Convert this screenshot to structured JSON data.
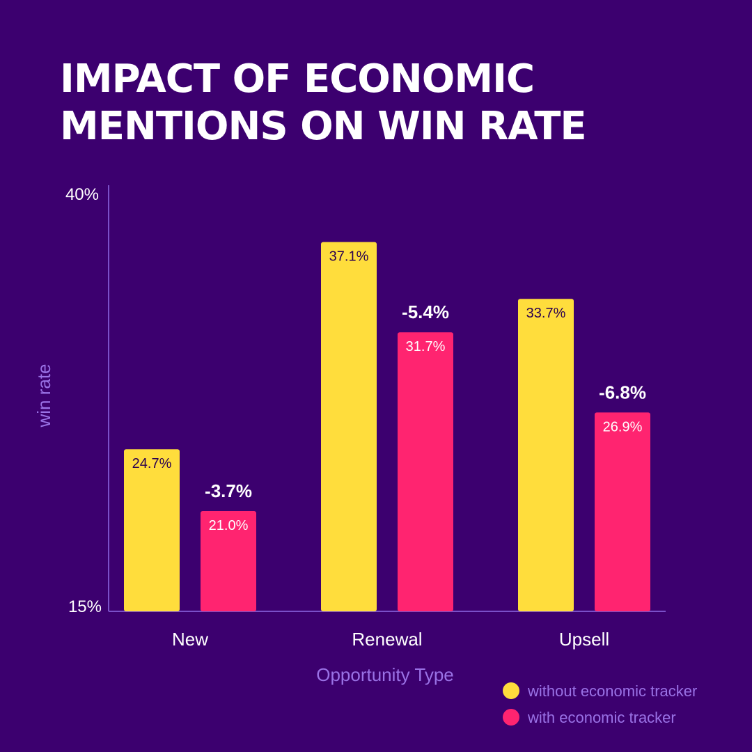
{
  "title_lines": [
    "IMPACT OF ECONOMIC",
    "MENTIONS ON WIN RATE"
  ],
  "chart_data": {
    "type": "bar",
    "categories": [
      "New",
      "Renewal",
      "Upsell"
    ],
    "series": [
      {
        "name": "without economic tracker",
        "values": [
          24.7,
          37.1,
          33.7
        ],
        "labels": [
          "24.7%",
          "37.1%",
          "33.7%"
        ],
        "color": "#ffdd3c"
      },
      {
        "name": "with economic tracker",
        "values": [
          21.0,
          31.7,
          26.9
        ],
        "labels": [
          "21.0%",
          "31.7%",
          "26.9%"
        ],
        "color": "#ff2470"
      }
    ],
    "deltas": [
      "-3.7%",
      "-5.4%",
      "-6.8%"
    ],
    "ylim": [
      15,
      40
    ],
    "yticks": [
      "15%",
      "40%"
    ],
    "xlabel": "Opportunity Type",
    "ylabel": "win rate",
    "legend_placement": "bottom-right",
    "colors": {
      "background": "#3c006f",
      "axis": "#7a50c8",
      "axis_label": "#9a72e6"
    }
  }
}
